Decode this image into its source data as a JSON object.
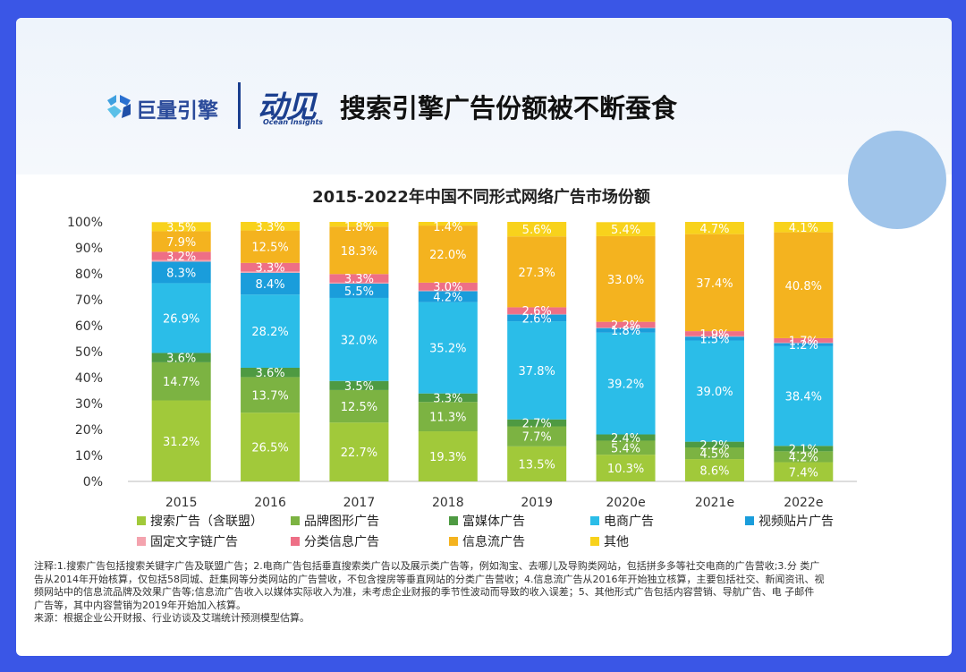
{
  "header": {
    "logo_text": "巨量引擎",
    "brand_main": "动见",
    "brand_sub": "Ocean Insights",
    "headline": "搜索引擎广告份额被不断蚕食"
  },
  "chart_data": {
    "type": "bar",
    "stacked": true,
    "title": "2015-2022年中国不同形式网络广告市场份额",
    "xlabel": "",
    "ylabel": "",
    "ylim": [
      0,
      100
    ],
    "yticks": [
      "0%",
      "10%",
      "20%",
      "30%",
      "40%",
      "50%",
      "60%",
      "70%",
      "80%",
      "90%",
      "100%"
    ],
    "categories": [
      "2015",
      "2016",
      "2017",
      "2018",
      "2019",
      "2020e",
      "2021e",
      "2022e"
    ],
    "legend_position": "bottom",
    "series": [
      {
        "name": "搜索广告（含联盟）",
        "color": "#a1c93a",
        "values": [
          31.2,
          26.5,
          22.7,
          19.3,
          13.5,
          10.3,
          8.6,
          7.4
        ]
      },
      {
        "name": "品牌图形广告",
        "color": "#7cb342",
        "values": [
          14.7,
          13.7,
          12.5,
          11.3,
          7.7,
          5.4,
          4.5,
          4.2
        ]
      },
      {
        "name": "富媒体广告",
        "color": "#4e9a42",
        "values": [
          3.6,
          3.6,
          3.5,
          3.3,
          2.7,
          2.4,
          2.2,
          2.1
        ]
      },
      {
        "name": "电商广告",
        "color": "#2bbde8",
        "values": [
          26.9,
          28.2,
          32.0,
          35.2,
          37.8,
          39.2,
          39.0,
          38.4
        ]
      },
      {
        "name": "视频贴片广告",
        "color": "#1a9ddb",
        "values": [
          8.3,
          8.4,
          5.5,
          4.2,
          2.6,
          1.8,
          1.5,
          1.2
        ]
      },
      {
        "name": "固定文字链广告",
        "color": "#f4a3ae",
        "values": [
          0.6,
          0.5,
          0.4,
          0.3,
          0.2,
          0.2,
          0.2,
          0.2
        ]
      },
      {
        "name": "分类信息广告",
        "color": "#ee6f86",
        "values": [
          3.2,
          3.3,
          3.3,
          3.0,
          2.6,
          2.2,
          1.9,
          1.7
        ]
      },
      {
        "name": "信息流广告",
        "color": "#f4b31f",
        "values": [
          7.9,
          12.5,
          18.3,
          22.0,
          27.3,
          33.0,
          37.4,
          40.8
        ]
      },
      {
        "name": "其他",
        "color": "#f8d21c",
        "values": [
          3.5,
          3.3,
          1.8,
          1.4,
          5.6,
          5.4,
          4.7,
          4.1
        ]
      }
    ],
    "data_labels": [
      [
        "31.2%",
        "14.7%",
        "3.6%",
        "26.9%",
        "8.3%",
        "",
        "3.2%",
        "7.9%",
        "3.5%"
      ],
      [
        "26.5%",
        "13.7%",
        "3.6%",
        "28.2%",
        "8.4%",
        "",
        "3.3%",
        "12.5%",
        "3.3%"
      ],
      [
        "22.7%",
        "12.5%",
        "3.5%",
        "32.0%",
        "5.5%",
        "",
        "3.3%",
        "18.3%",
        "1.8%"
      ],
      [
        "19.3%",
        "11.3%",
        "3.3%",
        "35.2%",
        "4.2%",
        "",
        "3.0%",
        "22.0%",
        "1.4%"
      ],
      [
        "13.5%",
        "7.7%",
        "2.7%",
        "37.8%",
        "2.6%",
        "",
        "2.6%",
        "27.3%",
        "5.6%"
      ],
      [
        "10.3%",
        "5.4%",
        "2.4%",
        "39.2%",
        "1.8%",
        "",
        "2.2%",
        "33.0%",
        "5.4%"
      ],
      [
        "8.6%",
        "4.5%",
        "2.2%",
        "39.0%",
        "1.5%",
        "",
        "1.9%",
        "37.4%",
        "4.7%"
      ],
      [
        "7.4%",
        "4.2%",
        "2.1%",
        "38.4%",
        "1.2%",
        "",
        "1.7%",
        "40.8%",
        "4.1%"
      ]
    ]
  },
  "notes": {
    "line1": "注释:1.搜索广告包括搜索关键字广告及联盟广告；2.电商广告包括垂直搜索类广告以及展示类广告等，例如淘宝、去哪儿及导购类网站，包括拼多多等社交电商的广告营收;3.分 类广",
    "line2": "告从2014年开始核算，仅包括58同城、赶集网等分类网站的广告营收，不包含搜房等垂直网站的分类广告营收；4.信息流广告从2016年开始独立核算，主要包括社交、新闻资讯、视",
    "line3": "频网站中的信息流品牌及效果广告等;信息流广告收入以媒体实际收入为准，未考虑企业财报的季节性波动而导致的收入误差；5、其他形式广告包括内容营销、导航广告、电 子邮件",
    "line4": "广告等，其中内容营销为2019年开始加入核算。",
    "line5": "来源：根据企业公开财报、行业访谈及艾瑞统计预测模型估算。"
  }
}
